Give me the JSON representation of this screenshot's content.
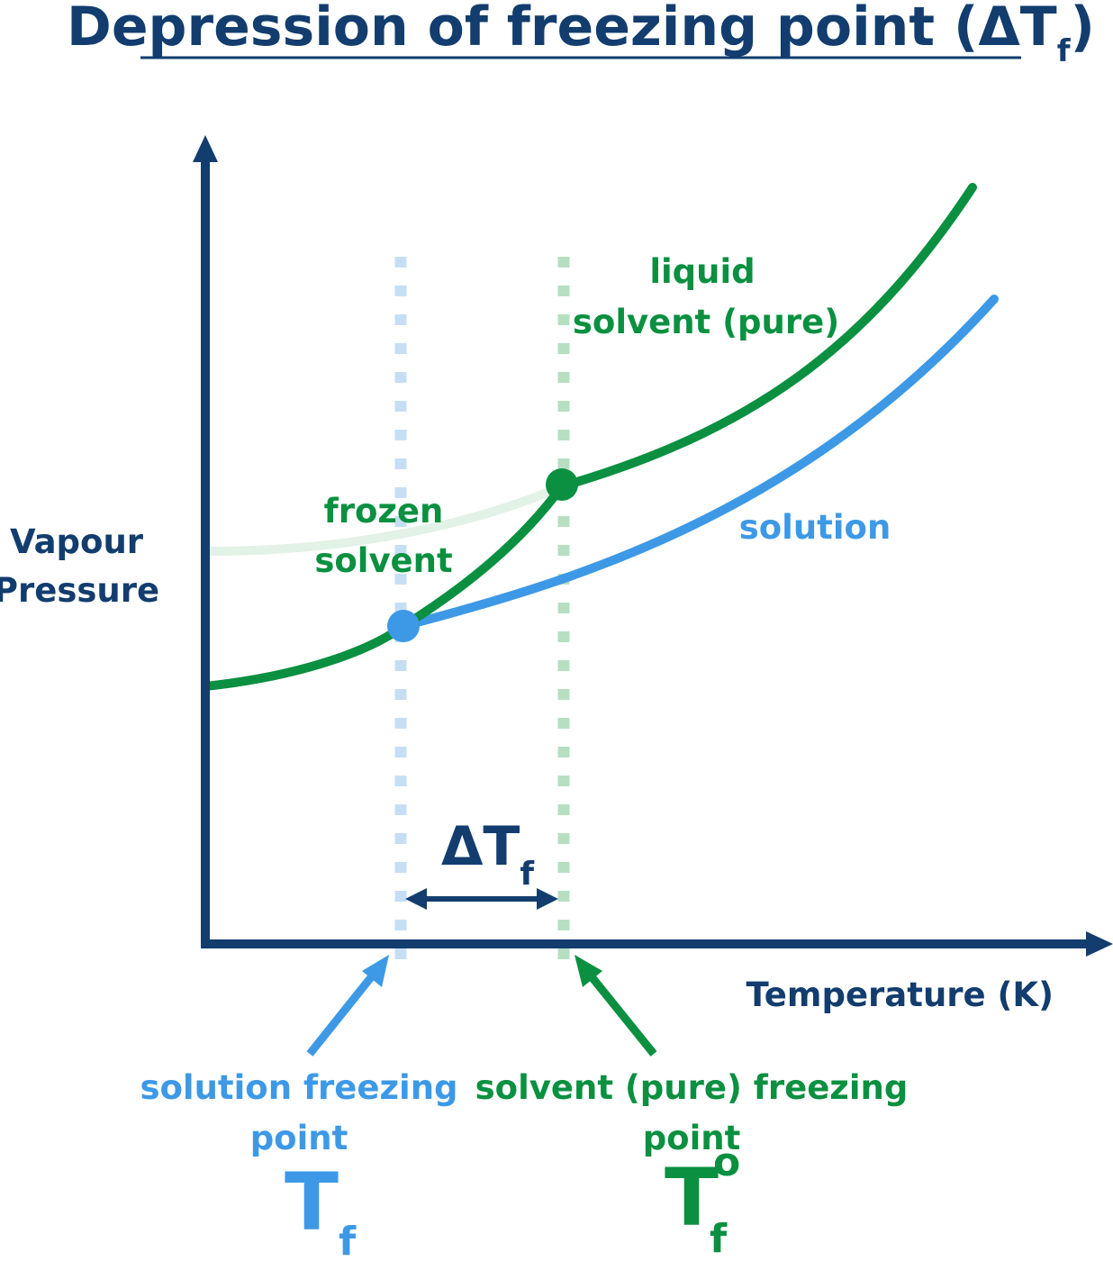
{
  "title": {
    "main": "Depression of freezing point (ΔT",
    "sub": "f",
    "close": ")"
  },
  "axes": {
    "y_label_line1": "Vapour",
    "y_label_line2": "Pressure",
    "x_label": "Temperature (K)"
  },
  "curves": {
    "liquid_line1": "liquid",
    "liquid_line2": "solvent (pure)",
    "frozen_line1": "frozen",
    "frozen_line2": "solvent",
    "solution": "solution"
  },
  "delta": {
    "main": "ΔT",
    "sub": "f"
  },
  "solution_fp": {
    "line1": "solution freezing",
    "line2": "point",
    "symbol": "T",
    "sub": "f"
  },
  "solvent_fp": {
    "line1": "solvent (pure) freezing",
    "line2": "point",
    "symbol": "T",
    "sup": "o",
    "sub": "f"
  },
  "colors": {
    "axis": "#123d6e",
    "green": "#0a9040",
    "blue": "#3d99e6",
    "light_green": "#e2f2e6",
    "dotted_blue": "#c6def4",
    "dotted_green": "#b6dfc2"
  }
}
